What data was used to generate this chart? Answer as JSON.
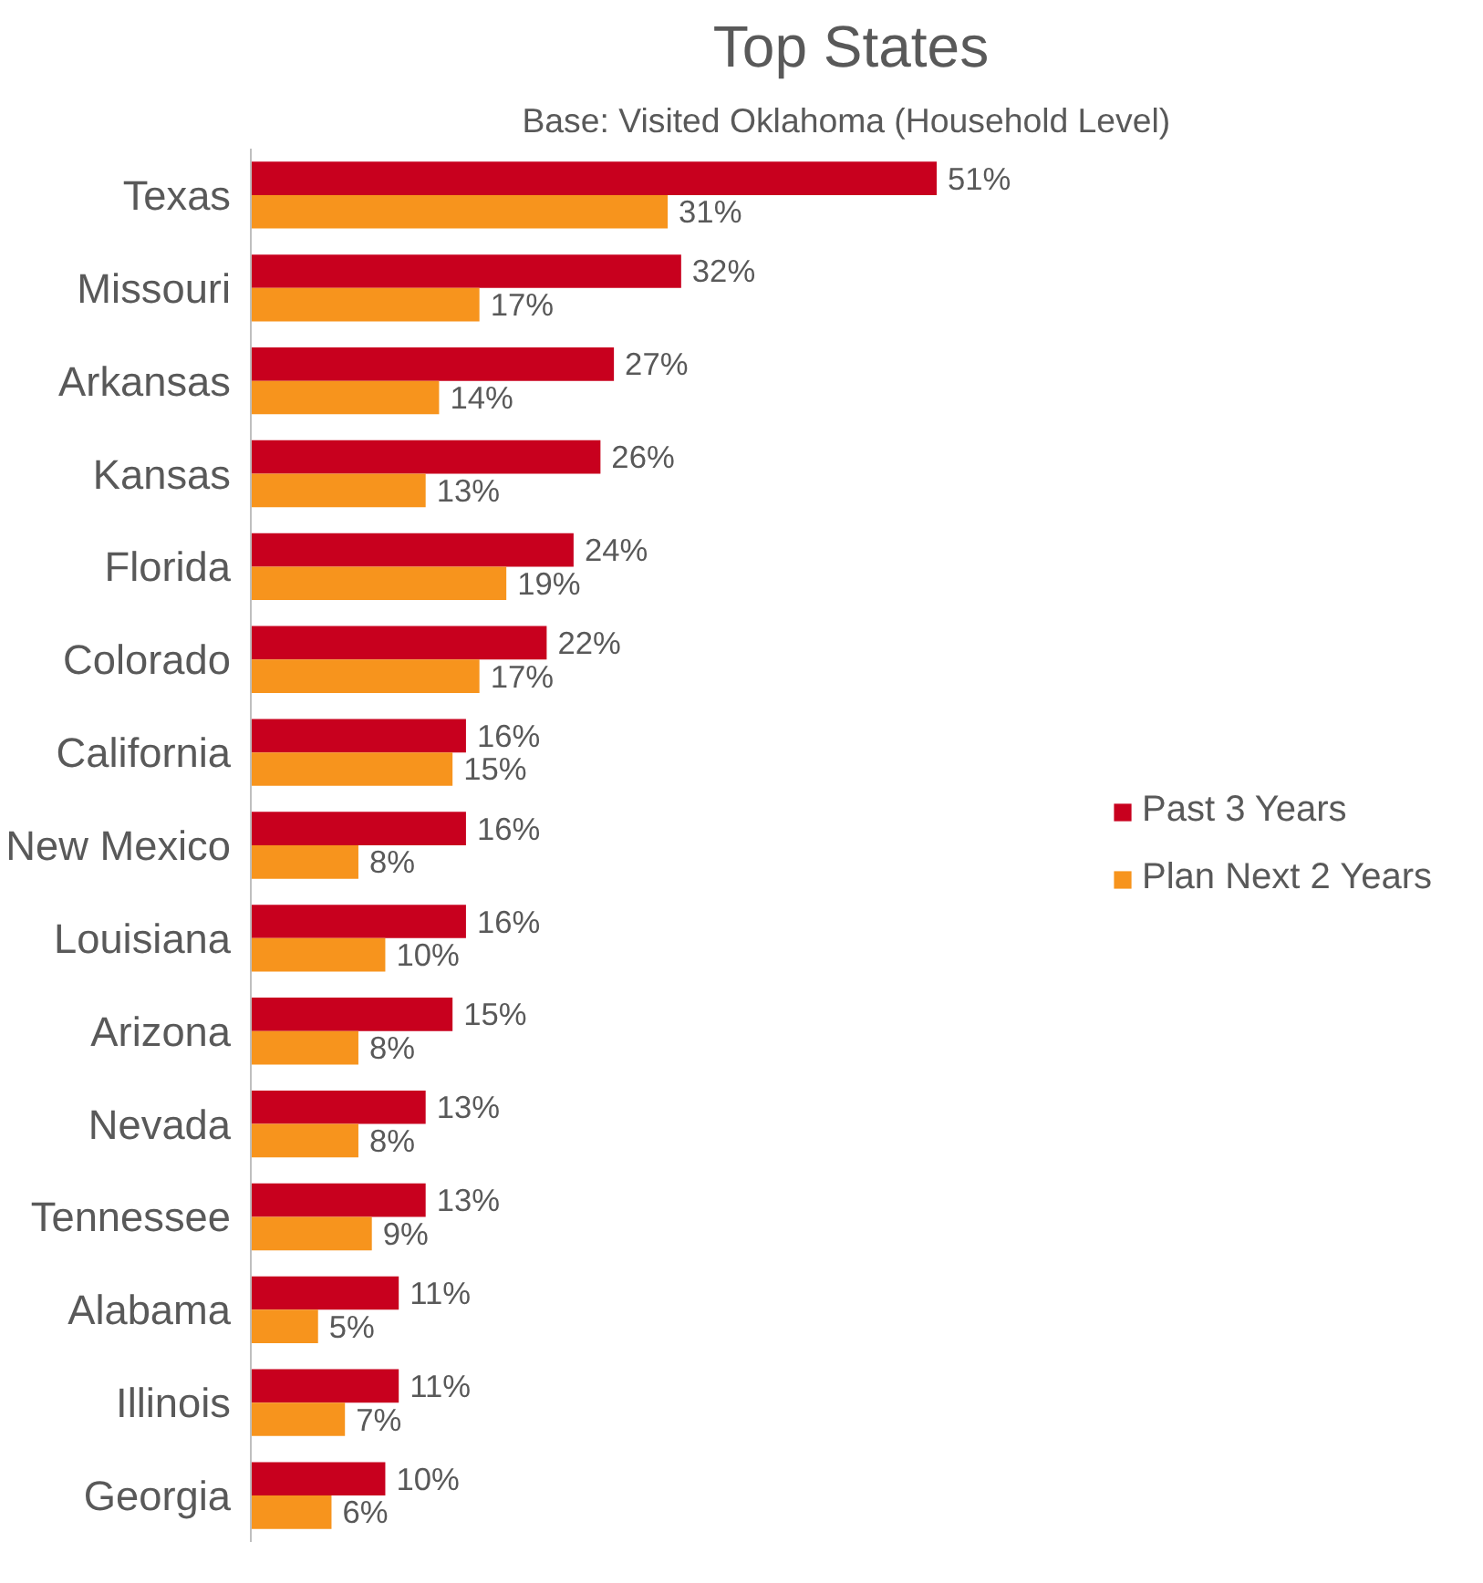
{
  "chart_data": {
    "type": "bar",
    "orientation": "horizontal",
    "title": "Top States",
    "subtitle": "Base:  Visited Oklahoma (Household Level)",
    "categories": [
      "Texas",
      "Missouri",
      "Arkansas",
      "Kansas",
      "Florida",
      "Colorado",
      "California",
      "New Mexico",
      "Louisiana",
      "Arizona",
      "Nevada",
      "Tennessee",
      "Alabama",
      "Illinois",
      "Georgia"
    ],
    "series": [
      {
        "name": "Past 3 Years",
        "color": "#c8001e",
        "values": [
          51,
          32,
          27,
          26,
          24,
          22,
          16,
          16,
          16,
          15,
          13,
          13,
          11,
          11,
          10
        ],
        "value_labels": [
          "51%",
          "32%",
          "27%",
          "26%",
          "24%",
          "22%",
          "16%",
          "16%",
          "16%",
          "15%",
          "13%",
          "13%",
          "11%",
          "11%",
          "10%"
        ]
      },
      {
        "name": "Plan Next 2 Years",
        "color": "#f7941d",
        "values": [
          31,
          17,
          14,
          13,
          19,
          17,
          15,
          8,
          10,
          8,
          8,
          9,
          5,
          7,
          6
        ],
        "value_labels": [
          "31%",
          "17%",
          "14%",
          "13%",
          "19%",
          "17%",
          "15%",
          "8%",
          "10%",
          "8%",
          "8%",
          "9%",
          "5%",
          "7%",
          "6%"
        ]
      }
    ],
    "legend": "right"
  }
}
